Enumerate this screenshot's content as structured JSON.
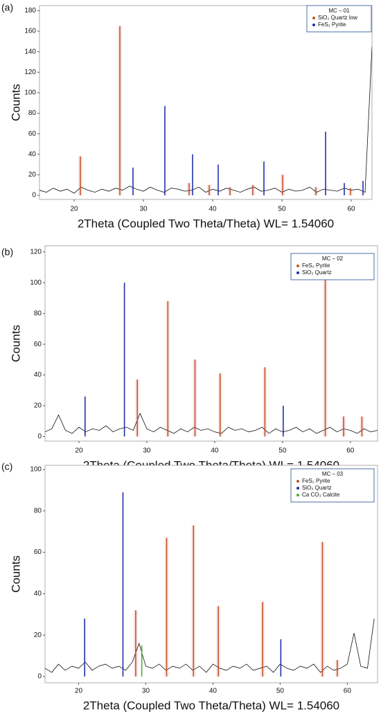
{
  "chart_data": [
    {
      "type": "line",
      "panel": "(a)",
      "ylabel": "Counts",
      "xlabel": "2Theta (Coupled Two Theta/Theta) WL= 1.54060",
      "legend_title": "MC – 01",
      "xlim": [
        15,
        63
      ],
      "ylim": [
        -4,
        185
      ],
      "xticks": [
        20,
        30,
        40,
        50,
        60
      ],
      "yticks": [
        0,
        20,
        40,
        60,
        80,
        100,
        120,
        140,
        160,
        180
      ],
      "color": "#111111",
      "x": [
        15,
        16,
        17,
        18,
        19,
        20,
        21,
        22,
        23,
        24,
        25,
        26,
        27,
        28,
        29,
        30,
        31,
        32,
        33,
        34,
        35,
        36,
        37,
        38,
        39,
        40,
        41,
        42,
        43,
        44,
        45,
        46,
        47,
        48,
        49,
        50,
        51,
        52,
        53,
        54,
        55,
        56,
        57,
        58,
        59,
        60,
        61,
        62,
        63
      ],
      "values": [
        5,
        3,
        7,
        4,
        6,
        2,
        8,
        5,
        3,
        6,
        4,
        7,
        5,
        9,
        6,
        4,
        8,
        5,
        3,
        7,
        6,
        4,
        5,
        8,
        3,
        6,
        4,
        7,
        5,
        3,
        6,
        8,
        4,
        5,
        7,
        3,
        6,
        4,
        5,
        8,
        3,
        6,
        5,
        4,
        7,
        5,
        6,
        3,
        145
      ],
      "series": [
        {
          "name": "SiO₂ Quartz low",
          "color": "#c0552a",
          "x": [
            20.9,
            26.6,
            36.6,
            39.5,
            42.5,
            45.8,
            50.1,
            54.9,
            59.9
          ],
          "values": [
            38,
            165,
            12,
            10,
            8,
            10,
            20,
            8,
            7
          ]
        },
        {
          "name": "FeS₂ Pyrite",
          "color": "#1f2fa8",
          "x": [
            28.5,
            33.1,
            37.1,
            40.8,
            47.4,
            56.3,
            59.0,
            61.7
          ],
          "values": [
            27,
            87,
            40,
            30,
            33,
            62,
            12,
            14
          ]
        }
      ]
    },
    {
      "type": "line",
      "panel": "(b)",
      "ylabel": "Counts",
      "xlabel": "2Theta (Coupled Two Theta/Theta) WL= 1.54060",
      "legend_title": "MC – 02",
      "xlim": [
        15,
        64
      ],
      "ylim": [
        -3,
        124
      ],
      "xticks": [
        20,
        30,
        40,
        50,
        60
      ],
      "yticks": [
        0,
        20,
        40,
        60,
        80,
        100,
        120
      ],
      "color": "#111111",
      "x": [
        15,
        16,
        17,
        18,
        19,
        20,
        21,
        22,
        23,
        24,
        25,
        26,
        27,
        28,
        29,
        30,
        31,
        32,
        33,
        34,
        35,
        36,
        37,
        38,
        39,
        40,
        41,
        42,
        43,
        44,
        45,
        46,
        47,
        48,
        49,
        50,
        51,
        52,
        53,
        54,
        55,
        56,
        57,
        58,
        59,
        60,
        61,
        62,
        63,
        64
      ],
      "values": [
        3,
        5,
        14,
        4,
        2,
        6,
        3,
        5,
        4,
        7,
        3,
        5,
        6,
        4,
        15,
        5,
        3,
        6,
        4,
        2,
        5,
        3,
        6,
        4,
        5,
        3,
        2,
        6,
        4,
        5,
        3,
        4,
        6,
        2,
        5,
        3,
        4,
        6,
        3,
        5,
        2,
        4,
        6,
        3,
        5,
        4,
        2,
        5,
        3,
        4
      ],
      "series": [
        {
          "name": "FeS₂ Pyrite",
          "color": "#c0552a",
          "x": [
            28.6,
            33.1,
            37.1,
            40.8,
            47.4,
            56.3,
            59.0,
            61.7
          ],
          "values": [
            37,
            88,
            50,
            41,
            45,
            108,
            13,
            13
          ]
        },
        {
          "name": "SiO₂ Quartz",
          "color": "#1f2fa8",
          "x": [
            20.9,
            26.7,
            50.1
          ],
          "values": [
            26,
            100,
            20
          ]
        }
      ]
    },
    {
      "type": "line",
      "panel": "(c)",
      "ylabel": "Counts",
      "xlabel": "2Theta (Coupled Two Theta/Theta) WL= 1.54060",
      "legend_title": "MC – 03",
      "xlim": [
        15,
        64.5
      ],
      "ylim": [
        -3,
        102
      ],
      "xticks": [
        20,
        30,
        40,
        50,
        60
      ],
      "yticks": [
        0,
        20,
        40,
        60,
        80,
        100
      ],
      "color": "#111111",
      "x": [
        15,
        16,
        17,
        18,
        19,
        20,
        21,
        22,
        23,
        24,
        25,
        26,
        27,
        28,
        29,
        30,
        31,
        32,
        33,
        34,
        35,
        36,
        37,
        38,
        39,
        40,
        41,
        42,
        43,
        44,
        45,
        46,
        47,
        48,
        49,
        50,
        51,
        52,
        53,
        54,
        55,
        56,
        57,
        58,
        59,
        60,
        61,
        62,
        63,
        64
      ],
      "values": [
        4,
        2,
        6,
        3,
        5,
        4,
        7,
        3,
        5,
        6,
        4,
        5,
        3,
        7,
        16,
        5,
        4,
        6,
        3,
        5,
        4,
        6,
        3,
        5,
        2,
        6,
        4,
        3,
        5,
        4,
        6,
        3,
        4,
        5,
        2,
        6,
        4,
        3,
        5,
        4,
        6,
        2,
        5,
        3,
        4,
        6,
        21,
        5,
        4,
        28
      ],
      "series": [
        {
          "name": "FeS₂ Pyrite",
          "color": "#c0552a",
          "x": [
            28.5,
            33.1,
            37.1,
            40.8,
            47.4,
            56.3,
            58.5
          ],
          "values": [
            32,
            67,
            73,
            34,
            36,
            65,
            8
          ]
        },
        {
          "name": "SiO₂ Quartz",
          "color": "#1f2fa8",
          "x": [
            20.9,
            26.6,
            50.1
          ],
          "values": [
            28,
            89,
            18
          ]
        },
        {
          "name": "Ca CO₃ Calcite",
          "color": "#4caf2a",
          "x": [
            29.4
          ],
          "values": [
            15
          ]
        }
      ]
    }
  ]
}
